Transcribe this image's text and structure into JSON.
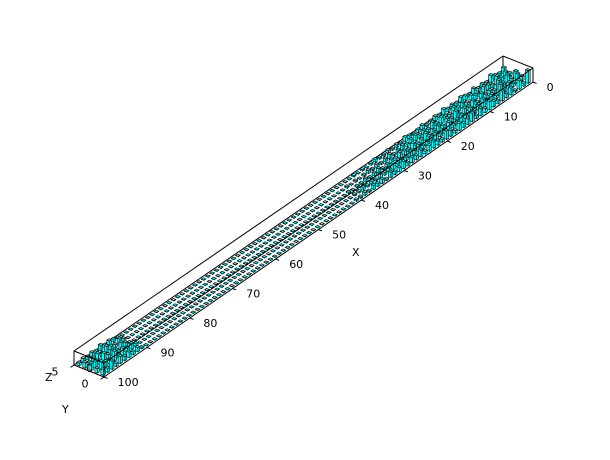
{
  "chart_data": {
    "type": "bar3d",
    "title": "",
    "xlabel": "X",
    "ylabel": "Y",
    "zlabel": "Z",
    "xlim": [
      0,
      100
    ],
    "ylim": [
      0,
      5
    ],
    "zlim": [
      0,
      1
    ],
    "x_ticks": [
      0,
      10,
      20,
      30,
      40,
      50,
      60,
      70,
      80,
      90,
      100
    ],
    "y_ticks": [
      0,
      5
    ],
    "z_ticks": [
      0
    ],
    "face_color": "#00ffff",
    "edge_color": "#000000",
    "series": [
      {
        "y": 0,
        "values": [
          0.9,
          0.2,
          0.6,
          0.1,
          0.5,
          0.3,
          0.7,
          0.2,
          0.4,
          0.6,
          0.3,
          0.5,
          0.2,
          0.6,
          0.4,
          0.3,
          0.5,
          0.2,
          0.4,
          0.6,
          0.2,
          0.3,
          0.5,
          0.4,
          0.2,
          0.5,
          0.3,
          0.4,
          0.2,
          0.5,
          0.3,
          0.2,
          0.4,
          0.1,
          0.3,
          0.2,
          0.3,
          0.1,
          0.2,
          0.1,
          0.1,
          0,
          0,
          0,
          0,
          0,
          0,
          0,
          0,
          0,
          0,
          0,
          0,
          0,
          0,
          0,
          0,
          0,
          0,
          0,
          0,
          0,
          0,
          0,
          0,
          0,
          0,
          0,
          0,
          0,
          0,
          0,
          0,
          0,
          0,
          0,
          0,
          0,
          0,
          0,
          0,
          0,
          0,
          0,
          0,
          0,
          0,
          0,
          0,
          0,
          0.1,
          0.3,
          0.2,
          0.4,
          0.3,
          0.5,
          0.2,
          0.6,
          0.3,
          0.4
        ]
      },
      {
        "y": 1,
        "values": [
          0.3,
          0.7,
          0.2,
          0.5,
          0.4,
          0.8,
          0.2,
          0.5,
          0.3,
          0.6,
          0.4,
          0.2,
          0.6,
          0.3,
          0.5,
          0.4,
          0.2,
          0.6,
          0.3,
          0.2,
          0.5,
          0.4,
          0.3,
          0.2,
          0.5,
          0.3,
          0.4,
          0.2,
          0.3,
          0.2,
          0.4,
          0.3,
          0.2,
          0.3,
          0.1,
          0.2,
          0.1,
          0.2,
          0.1,
          0.1,
          0,
          0,
          0,
          0,
          0,
          0,
          0,
          0,
          0,
          0,
          0,
          0,
          0,
          0,
          0,
          0,
          0,
          0,
          0,
          0,
          0,
          0,
          0,
          0,
          0,
          0,
          0,
          0,
          0,
          0,
          0,
          0,
          0,
          0,
          0,
          0,
          0,
          0,
          0,
          0,
          0,
          0,
          0,
          0,
          0,
          0,
          0,
          0,
          0,
          0,
          0.2,
          0.4,
          0.3,
          0.5,
          0.2,
          0.7,
          0.3,
          0.4,
          0.6,
          0.3
        ]
      },
      {
        "y": 2,
        "values": [
          0.5,
          0.2,
          0.6,
          0.3,
          0.7,
          0.2,
          0.4,
          0.3,
          0.6,
          0.2,
          0.5,
          0.3,
          0.4,
          0.2,
          0.6,
          0.3,
          0.5,
          0.2,
          0.4,
          0.3,
          0.2,
          0.5,
          0.3,
          0.2,
          0.4,
          0.2,
          0.3,
          0.4,
          0.2,
          0.3,
          0.2,
          0.1,
          0.3,
          0.2,
          0.1,
          0.2,
          0.1,
          0.1,
          0,
          0.1,
          0,
          0,
          0,
          0,
          0,
          0,
          0,
          0,
          0,
          0,
          0,
          0,
          0,
          0,
          0,
          0,
          0,
          0,
          0,
          0,
          0,
          0,
          0,
          0,
          0,
          0,
          0,
          0,
          0,
          0,
          0,
          0,
          0,
          0,
          0,
          0,
          0,
          0,
          0,
          0,
          0,
          0,
          0,
          0,
          0,
          0,
          0,
          0,
          0,
          0,
          0.1,
          0.3,
          0.5,
          0.2,
          0.4,
          0.3,
          0.6,
          0.2,
          0.4,
          0.5
        ]
      },
      {
        "y": 3,
        "values": [
          0.2,
          0.5,
          0.3,
          0.6,
          0.2,
          0.4,
          0.5,
          0.2,
          0.3,
          0.5,
          0.2,
          0.4,
          0.3,
          0.5,
          0.2,
          0.3,
          0.4,
          0.2,
          0.5,
          0.2,
          0.3,
          0.2,
          0.4,
          0.3,
          0.2,
          0.3,
          0.2,
          0.1,
          0.3,
          0.2,
          0.1,
          0.2,
          0.1,
          0.2,
          0.1,
          0,
          0.1,
          0,
          0.1,
          0,
          0,
          0,
          0,
          0,
          0,
          0,
          0,
          0,
          0,
          0,
          0,
          0,
          0,
          0,
          0,
          0,
          0,
          0,
          0,
          0,
          0,
          0,
          0,
          0,
          0,
          0,
          0,
          0,
          0,
          0,
          0,
          0,
          0,
          0,
          0,
          0,
          0,
          0,
          0,
          0,
          0,
          0,
          0,
          0,
          0,
          0,
          0,
          0,
          0,
          0,
          0.2,
          0.4,
          0.2,
          0.3,
          0.5,
          0.2,
          0.4,
          0.3,
          0.2,
          0.4
        ]
      },
      {
        "y": 4,
        "values": [
          0.4,
          0.2,
          0.3,
          0.5,
          0.2,
          0.3,
          0.2,
          0.4,
          0.2,
          0.3,
          0.4,
          0.2,
          0.3,
          0.2,
          0.4,
          0.2,
          0.3,
          0.2,
          0.1,
          0.3,
          0.2,
          0.1,
          0.2,
          0.3,
          0.1,
          0.2,
          0.1,
          0.2,
          0.1,
          0.1,
          0.2,
          0.1,
          0,
          0.1,
          0,
          0.1,
          0,
          0,
          0,
          0,
          0,
          0,
          0,
          0,
          0,
          0,
          0,
          0,
          0,
          0,
          0,
          0,
          0,
          0,
          0,
          0,
          0,
          0,
          0,
          0,
          0,
          0,
          0,
          0,
          0,
          0,
          0,
          0,
          0,
          0,
          0,
          0,
          0,
          0,
          0,
          0,
          0,
          0,
          0,
          0,
          0,
          0,
          0,
          0,
          0,
          0,
          0,
          0,
          0,
          0,
          0.1,
          0.2,
          0.3,
          0.2,
          0.4,
          0.2,
          0.3,
          0.2,
          0.3,
          0.2
        ]
      }
    ]
  }
}
